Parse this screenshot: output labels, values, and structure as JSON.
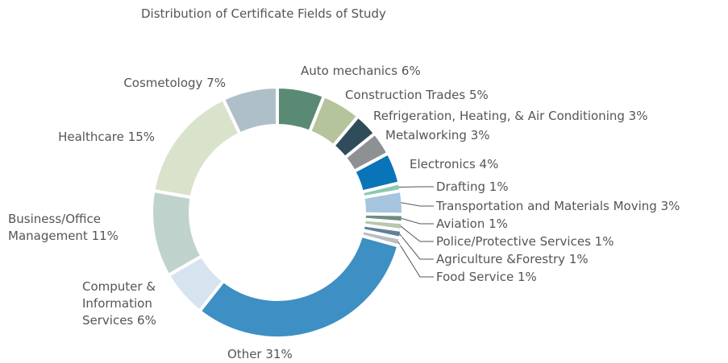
{
  "chart_data": {
    "type": "donut",
    "title": "Distribution of Certificate Fields of Study",
    "categories": [
      "Auto mechanics",
      "Construction Trades",
      "Refrigeration, Heating, & Air Conditioning",
      "Metalworking",
      "Electronics",
      "Drafting",
      "Transportation and Materials Moving",
      "Aviation",
      "Police/Protective Services",
      "Agriculture &Forestry",
      "Food Service",
      "Other",
      "Computer & Information Services",
      "Business/Office Management",
      "Healthcare",
      "Cosmetology"
    ],
    "values": [
      6,
      5,
      3,
      3,
      4,
      1,
      3,
      1,
      1,
      1,
      1,
      31,
      6,
      11,
      15,
      7
    ],
    "value_labels": [
      "6%",
      "5%",
      "3%",
      "3%",
      "4%",
      "1%",
      "3%",
      "1%",
      "1%",
      "1%",
      "1%",
      "31%",
      "6%",
      "11%",
      "15%",
      "7%"
    ],
    "colors": [
      "#5a8a73",
      "#b5c49b",
      "#2f4c5a",
      "#8e9194",
      "#0a74b8",
      "#8cc8b4",
      "#a7c4de",
      "#6e8d83",
      "#b6c8ae",
      "#5f8297",
      "#b9bec2",
      "#3d8fc4",
      "#d6e4ef",
      "#bfd3cc",
      "#d9e3cc",
      "#aebfc8"
    ]
  }
}
